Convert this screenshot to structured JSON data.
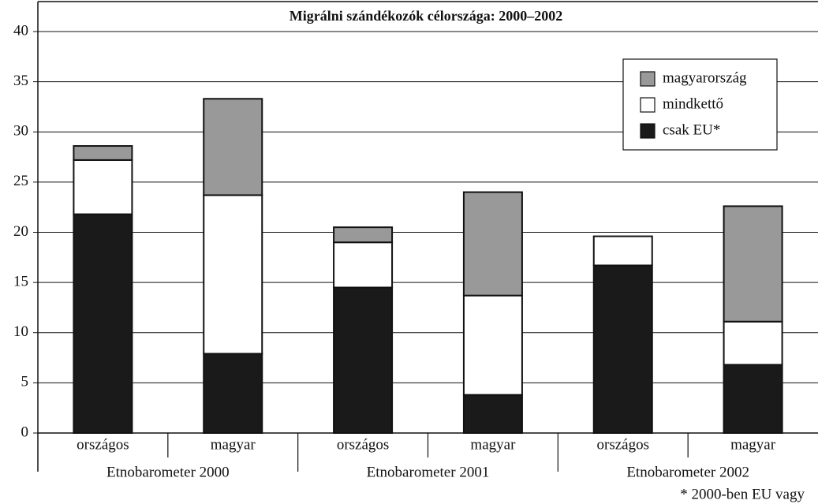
{
  "chart_data": {
    "type": "stacked_bar",
    "title": "Migrálni szándékozók célországa: 2000–2002",
    "categories": [
      "országos",
      "magyar",
      "országos",
      "magyar",
      "országos",
      "magyar"
    ],
    "groups": [
      "Etnobarometer 2000",
      "Etnobarometer 2001",
      "Etnobarometer 2002"
    ],
    "series": [
      {
        "name": "csak EU*",
        "color": "#1a1a1a",
        "values": [
          21.8,
          7.9,
          14.5,
          3.8,
          16.7,
          6.8
        ]
      },
      {
        "name": "mindkettő",
        "color": "#ffffff",
        "values": [
          5.4,
          15.8,
          4.5,
          9.9,
          2.9,
          4.3
        ]
      },
      {
        "name": "magyarország",
        "color": "#999999",
        "values": [
          1.4,
          9.6,
          1.5,
          10.3,
          0,
          11.5
        ]
      }
    ],
    "ylim": [
      0,
      40
    ],
    "yticks": [
      0,
      5,
      10,
      15,
      20,
      25,
      30,
      35,
      40
    ],
    "grid": true,
    "legend": "top-right",
    "footnote": "* 2000-ben EU vagy"
  }
}
